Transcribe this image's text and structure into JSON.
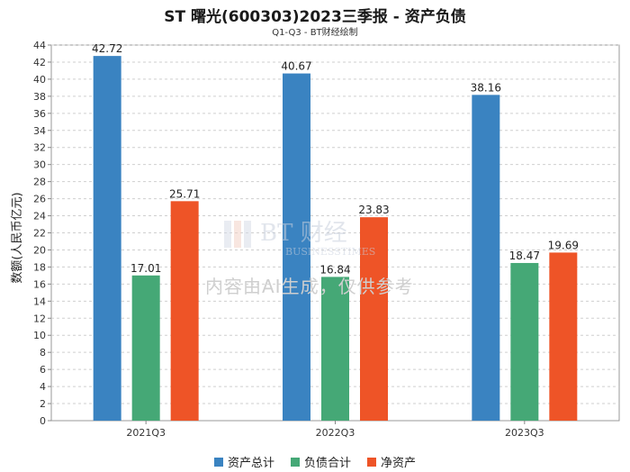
{
  "chart_data": {
    "type": "bar",
    "title": "ST 曙光(600303)2023三季报 - 资产负债",
    "subtitle": "Q1-Q3 - BT财经绘制",
    "ylabel": "数额(人民币亿元)",
    "xlabel": "",
    "categories": [
      "2021Q3",
      "2022Q3",
      "2023Q3"
    ],
    "series": [
      {
        "name": "资产总计",
        "color": "#3a83c1",
        "values": [
          42.72,
          40.67,
          38.16
        ]
      },
      {
        "name": "负债合计",
        "color": "#45a876",
        "values": [
          17.01,
          16.84,
          18.47
        ]
      },
      {
        "name": "净资产",
        "color": "#ee5427",
        "values": [
          25.71,
          23.83,
          19.69
        ]
      }
    ],
    "ylim": [
      0,
      44
    ],
    "yticks": [
      0,
      2,
      4,
      6,
      8,
      10,
      12,
      14,
      16,
      18,
      20,
      22,
      24,
      26,
      28,
      30,
      32,
      34,
      36,
      38,
      40,
      42,
      44
    ],
    "grid": true,
    "legend_position": "bottom-center"
  },
  "watermark": {
    "logo_text": "BT 财经",
    "logo_sub": "BUSINESSTIMES",
    "notice": "内容由AI生成，仅供参考"
  }
}
